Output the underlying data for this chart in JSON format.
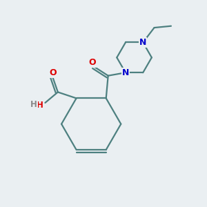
{
  "background_color": "#eaeff2",
  "bond_color": "#4d8080",
  "atom_colors": {
    "O": "#dd0000",
    "N": "#0000cc",
    "H": "#888888",
    "C": "#4d8080"
  },
  "figsize": [
    3.0,
    3.0
  ],
  "dpi": 100
}
